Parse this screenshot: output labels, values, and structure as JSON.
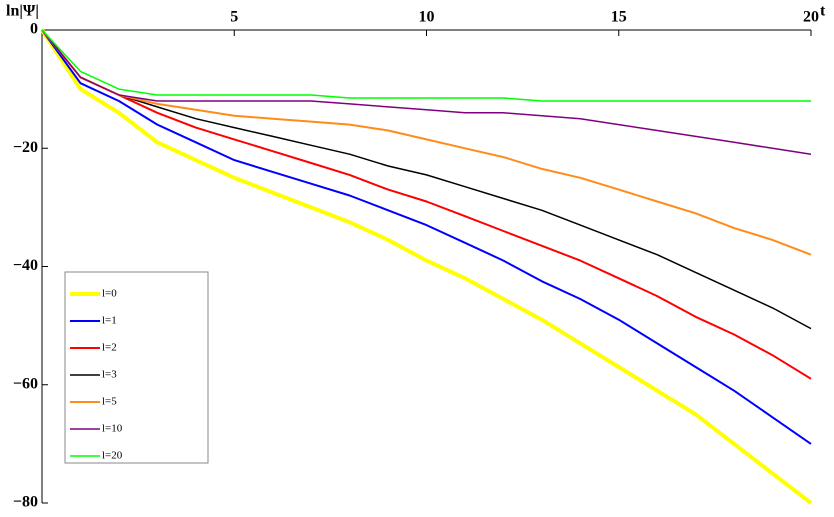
{
  "chart_data": {
    "type": "line",
    "x_label": "t",
    "y_label": "ln|Ψ|",
    "x": [
      0,
      1,
      2,
      3,
      4,
      5,
      6,
      7,
      8,
      9,
      10,
      11,
      12,
      13,
      14,
      15,
      16,
      17,
      18,
      19,
      20
    ],
    "xlim": [
      0,
      20
    ],
    "xticks": [
      5,
      10,
      15,
      20
    ],
    "ylim": [
      -80,
      0
    ],
    "yticks": [
      {
        "value": -80,
        "label": "−80"
      },
      {
        "value": -60,
        "label": "−60"
      },
      {
        "value": -40,
        "label": "−40"
      },
      {
        "value": -20,
        "label": "−20"
      },
      0
    ],
    "legend": "left",
    "series": [
      {
        "name": "l=0",
        "color": "#ffff00",
        "values": [
          0,
          -10,
          -14,
          -19,
          -22,
          -25,
          -27.5,
          -30,
          -32.5,
          -35.5,
          -39,
          -42,
          -45.5,
          -49,
          -53,
          -57,
          -61,
          -65,
          -70,
          -75,
          -80
        ]
      },
      {
        "name": "l=1",
        "color": "#0000ff",
        "values": [
          0,
          -9,
          -12,
          -16,
          -19,
          -22,
          -24,
          -26,
          -28,
          -30.5,
          -33,
          -36,
          -39,
          -42.5,
          -45.5,
          -49,
          -53,
          -57,
          -61,
          -65.5,
          -70
        ]
      },
      {
        "name": "l=2",
        "color": "#ff0000",
        "values": [
          0,
          -8,
          -11,
          -14,
          -16.5,
          -18.5,
          -20.5,
          -22.5,
          -24.5,
          -27,
          -29,
          -31.5,
          -34,
          -36.5,
          -39,
          -42,
          -45,
          -48.5,
          -51.5,
          -55,
          -59
        ]
      },
      {
        "name": "l=3",
        "color": "#000000",
        "values": [
          0,
          -8,
          -11,
          -13,
          -15,
          -16.5,
          -18,
          -19.5,
          -21,
          -23,
          -24.5,
          -26.5,
          -28.5,
          -30.5,
          -33,
          -35.5,
          -38,
          -41,
          -44,
          -47,
          -50.5
        ]
      },
      {
        "name": "l=5",
        "color": "#ff8c1a",
        "values": [
          0,
          -8,
          -11,
          -12.5,
          -13.5,
          -14.5,
          -15,
          -15.5,
          -16,
          -17,
          -18.5,
          -20,
          -21.5,
          -23.5,
          -25,
          -27,
          -29,
          -31,
          -33.5,
          -35.5,
          -38
        ]
      },
      {
        "name": "l=10",
        "color": "#800080",
        "values": [
          0,
          -8,
          -11,
          -12,
          -12,
          -12,
          -12,
          -12,
          -12.5,
          -13,
          -13.5,
          -14,
          -14,
          -14.5,
          -15,
          -16,
          -17,
          -18,
          -19,
          -20,
          -21
        ]
      },
      {
        "name": "l=20",
        "color": "#00ff00",
        "values": [
          0,
          -7,
          -10,
          -11,
          -11,
          -11,
          -11,
          -11,
          -11.5,
          -11.5,
          -11.5,
          -11.5,
          -11.5,
          -12,
          -12,
          -12,
          -12,
          -12,
          -12,
          -12,
          -12
        ]
      }
    ]
  }
}
